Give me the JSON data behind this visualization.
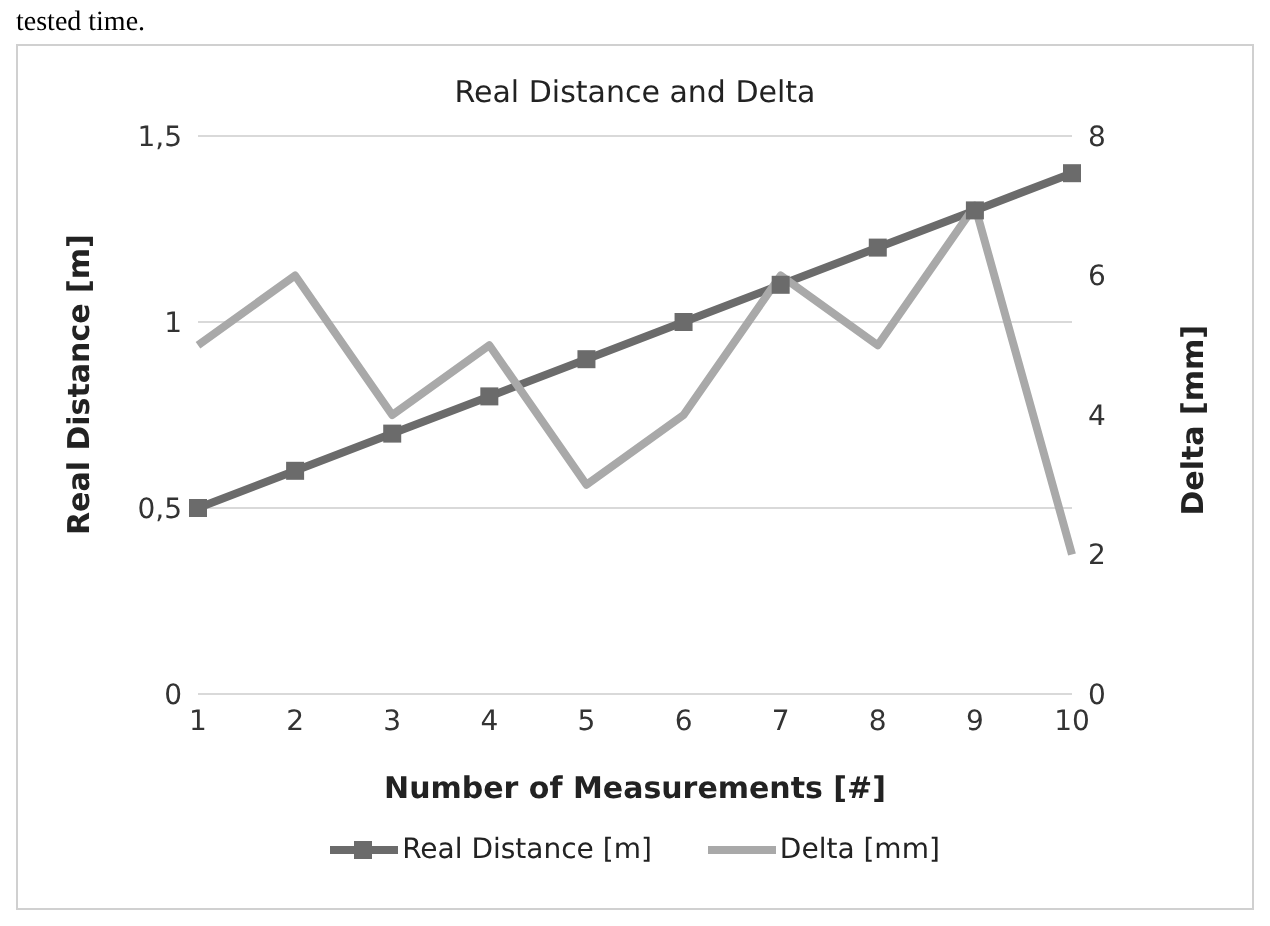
{
  "chart_data": {
    "type": "line",
    "title": "Real Distance and Delta",
    "xlabel": "Number of Measurements [#]",
    "ylabel": "Real Distance [m]",
    "y2label": "Delta [mm]",
    "annotations": [
      "tested time."
    ],
    "categories": [
      "1",
      "2",
      "3",
      "4",
      "5",
      "6",
      "7",
      "8",
      "9",
      "10"
    ],
    "series": [
      {
        "name": "Real Distance [m]",
        "color": "#6b6b6b",
        "marker": "square",
        "values": [
          0.5,
          0.6,
          0.7,
          0.8,
          0.9,
          1.0,
          1.1,
          1.2,
          1.3,
          1.4
        ]
      },
      {
        "name": "Delta [mm]",
        "color": "#a9a9a9",
        "marker": "none",
        "axis": "y2",
        "values": [
          5,
          6,
          4,
          5,
          3,
          4,
          6,
          5,
          7,
          2
        ]
      }
    ],
    "ylim": [
      0,
      1.5
    ],
    "yticks": [
      0,
      {
        "value": 0.5,
        "label": "0,5"
      },
      1,
      {
        "value": 1.5,
        "label": "1,5"
      }
    ],
    "y2lim": [
      0,
      8
    ],
    "y2ticks": [
      0,
      2,
      4,
      6,
      8
    ],
    "grid": "y",
    "legend": "bottom"
  }
}
